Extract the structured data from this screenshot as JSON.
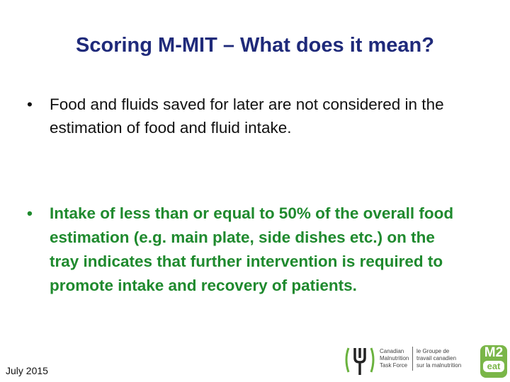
{
  "slide": {
    "title": "Scoring M-MIT – What does it mean?",
    "bullets": [
      "Food and fluids saved for later are not considered in the estimation of food and fluid intake.",
      "Intake of less than or equal to 50% of the overall food estimation (e.g. main plate, side dishes etc.) on the tray indicates that further intervention is required to promote intake and recovery of patients."
    ],
    "footer": "July 2015",
    "logo": {
      "english": [
        "Canadian",
        "Malnutrition",
        "Task Force"
      ],
      "french": [
        "le Groupe de",
        "travail canadien",
        "sur la malnutrition"
      ],
      "badge": [
        "M2",
        "eat"
      ]
    }
  }
}
